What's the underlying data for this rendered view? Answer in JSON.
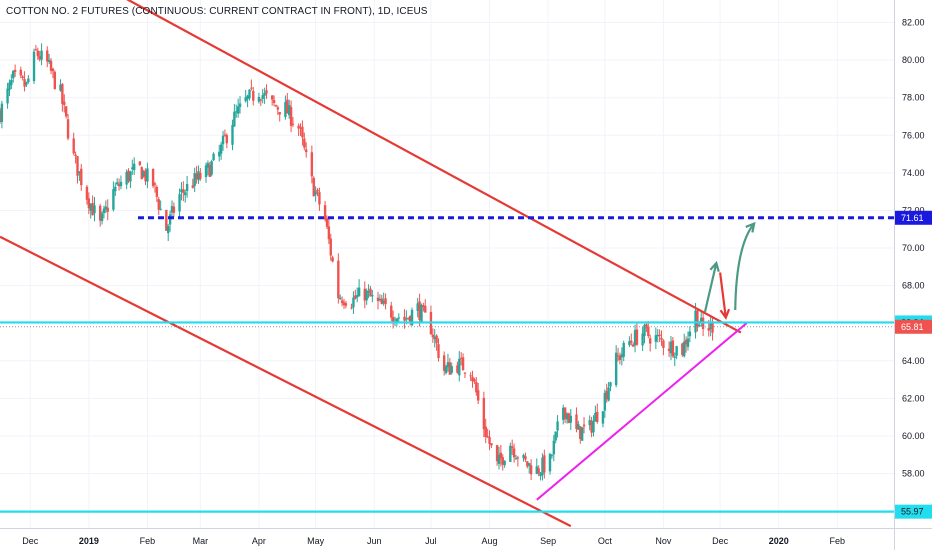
{
  "chart_data": {
    "type": "candlestick",
    "title": "COTTON NO. 2 FUTURES (CONTINUOUS: CURRENT CONTRACT IN FRONT), 1D, ICEUS",
    "y_ticks": [
      58,
      60,
      62,
      64,
      66,
      68,
      70,
      72,
      74,
      76,
      78,
      80,
      82
    ],
    "y_tick_labels": [
      "58.00",
      "60.00",
      "62.00",
      "64.00",
      "66.00",
      "68.00",
      "70.00",
      "72.00",
      "74.00",
      "76.00",
      "78.00",
      "80.00",
      "82.00"
    ],
    "ylim": [
      55.1,
      83.2
    ],
    "x_axis_labels": [
      "Dec",
      "2019",
      "Feb",
      "Mar",
      "Apr",
      "May",
      "Jun",
      "Jul",
      "Aug",
      "Sep",
      "Oct",
      "Nov",
      "Dec",
      "2020",
      "Feb"
    ],
    "x_axis_label_dates": [
      "2018-12-01",
      "2019-01-01",
      "2019-02-01",
      "2019-03-01",
      "2019-04-01",
      "2019-05-01",
      "2019-06-01",
      "2019-07-01",
      "2019-08-01",
      "2019-09-01",
      "2019-10-01",
      "2019-11-01",
      "2019-12-01",
      "2020-01-01",
      "2020-02-01"
    ],
    "xlim": [
      "2018-11-15",
      "2020-03-02"
    ],
    "candle_colors": {
      "up": "#26a69a",
      "down": "#ef5350"
    },
    "price_path": [
      [
        "2018-11-15",
        77.2
      ],
      [
        "2018-11-22",
        79.0
      ],
      [
        "2018-11-29",
        78.6
      ],
      [
        "2018-12-04",
        80.4
      ],
      [
        "2018-12-10",
        79.8
      ],
      [
        "2018-12-17",
        78.2
      ],
      [
        "2018-12-24",
        74.8
      ],
      [
        "2018-12-31",
        72.8
      ],
      [
        "2019-01-07",
        71.2
      ],
      [
        "2019-01-14",
        73.0
      ],
      [
        "2019-01-21",
        73.8
      ],
      [
        "2019-01-28",
        74.2
      ],
      [
        "2019-02-04",
        73.4
      ],
      [
        "2019-02-11",
        71.0
      ],
      [
        "2019-02-18",
        72.8
      ],
      [
        "2019-02-25",
        73.5
      ],
      [
        "2019-03-04",
        74.0
      ],
      [
        "2019-03-11",
        75.0
      ],
      [
        "2019-03-18",
        76.8
      ],
      [
        "2019-03-25",
        77.8
      ],
      [
        "2019-04-01",
        78.4
      ],
      [
        "2019-04-08",
        77.6
      ],
      [
        "2019-04-15",
        77.4
      ],
      [
        "2019-04-22",
        76.4
      ],
      [
        "2019-04-29",
        73.5
      ],
      [
        "2019-05-06",
        71.5
      ],
      [
        "2019-05-13",
        67.5
      ],
      [
        "2019-05-20",
        67.2
      ],
      [
        "2019-05-27",
        67.6
      ],
      [
        "2019-06-03",
        67.0
      ],
      [
        "2019-06-10",
        66.6
      ],
      [
        "2019-06-17",
        66.2
      ],
      [
        "2019-06-24",
        66.8
      ],
      [
        "2019-07-01",
        65.8
      ],
      [
        "2019-07-08",
        63.5
      ],
      [
        "2019-07-15",
        63.8
      ],
      [
        "2019-07-22",
        63.6
      ],
      [
        "2019-07-29",
        60.5
      ],
      [
        "2019-08-05",
        58.4
      ],
      [
        "2019-08-12",
        59.6
      ],
      [
        "2019-08-19",
        58.6
      ],
      [
        "2019-08-26",
        58.2
      ],
      [
        "2019-09-02",
        58.6
      ],
      [
        "2019-09-09",
        61.6
      ],
      [
        "2019-09-16",
        60.2
      ],
      [
        "2019-09-23",
        60.4
      ],
      [
        "2019-09-30",
        61.8
      ],
      [
        "2019-10-07",
        64.0
      ],
      [
        "2019-10-14",
        65.0
      ],
      [
        "2019-10-21",
        65.5
      ],
      [
        "2019-10-28",
        65.2
      ],
      [
        "2019-11-04",
        64.8
      ],
      [
        "2019-11-11",
        64.6
      ],
      [
        "2019-11-18",
        66.5
      ],
      [
        "2019-11-22",
        65.6
      ],
      [
        "2019-11-27",
        65.9
      ]
    ],
    "price_path_note": "",
    "drawings": {
      "channel_upper_line": {
        "color": "#e53935",
        "points": [
          [
            "2018-12-20",
            85.0
          ],
          [
            "2019-12-12",
            65.5
          ]
        ]
      },
      "channel_lower_line": {
        "color": "#e53935",
        "points": [
          [
            "2018-11-15",
            70.6
          ],
          [
            "2019-09-13",
            55.2
          ]
        ]
      },
      "support_trendline": {
        "color": "#ee22ee",
        "points": [
          [
            "2019-08-26",
            56.6
          ],
          [
            "2019-12-15",
            66.0
          ]
        ]
      },
      "resistance_dashed": {
        "color": "#1a1adf",
        "value": 71.61,
        "from": "2019-01-27"
      },
      "horizontal_top": {
        "color": "#22ddee",
        "value": 66.04
      },
      "horizontal_bottom": {
        "color": "#22ddee",
        "value": 55.97
      },
      "gray_dotted": {
        "color": "#9598a1",
        "value": 65.81
      },
      "arrow_up_small": {
        "color": "#4c9a84",
        "from": [
          "2019-11-23",
          66.6
        ],
        "to": [
          "2019-11-29",
          69.2
        ]
      },
      "arrow_down": {
        "color": "#e53935",
        "from": [
          "2019-12-01",
          68.7
        ],
        "to": [
          "2019-12-04",
          66.3
        ]
      },
      "arrow_up_large": {
        "color": "#4c9a84",
        "from": [
          "2019-12-09",
          66.7
        ],
        "to": [
          "2019-12-19",
          71.3
        ]
      }
    },
    "price_labels": [
      {
        "text": "71.61",
        "value": 71.61,
        "bg": "#1a1adf",
        "fg": "#ffffff"
      },
      {
        "text": "66.04",
        "value": 66.04,
        "bg": "#22ddee",
        "fg": "#131722"
      },
      {
        "text": "65.81",
        "value": 65.81,
        "bg": "#ef5350",
        "fg": "#ffffff"
      },
      {
        "text": "55.97",
        "value": 55.97,
        "bg": "#22ddee",
        "fg": "#131722"
      }
    ]
  }
}
